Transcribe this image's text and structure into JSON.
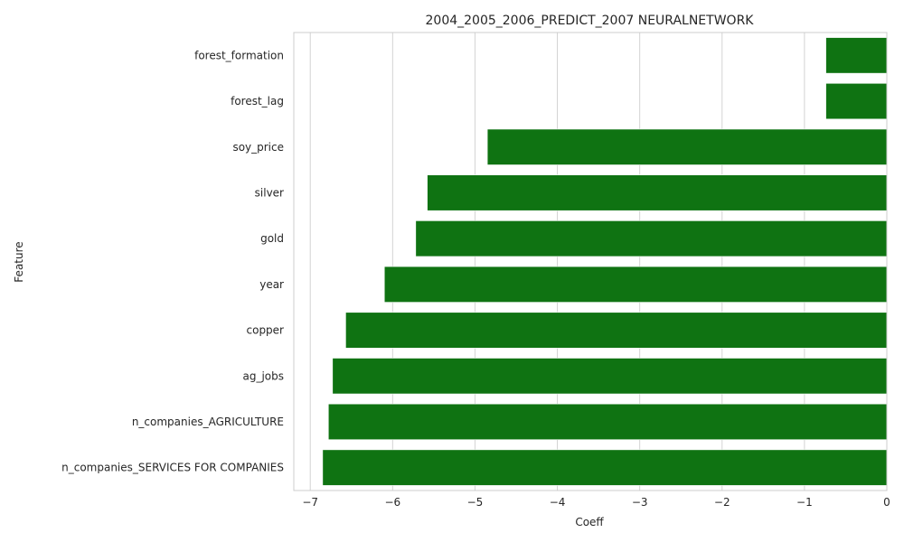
{
  "chart_data": {
    "type": "bar",
    "orientation": "horizontal",
    "title": "2004_2005_2006_PREDICT_2007 NEURALNETWORK",
    "xlabel": "Coeff",
    "ylabel": "Feature",
    "categories": [
      "forest_formation",
      "forest_lag",
      "soy_price",
      "silver",
      "gold",
      "year",
      "copper",
      "ag_jobs",
      "n_companies_AGRICULTURE",
      "n_companies_SERVICES FOR COMPANIES"
    ],
    "values": [
      -0.74,
      -0.74,
      -4.85,
      -5.58,
      -5.72,
      -6.1,
      -6.57,
      -6.73,
      -6.78,
      -6.85
    ],
    "xlim": [
      -7.2,
      0
    ],
    "xticks": [
      -7,
      -6,
      -5,
      -4,
      -3,
      -2,
      -1,
      0
    ],
    "xtick_labels": [
      "−7",
      "−6",
      "−5",
      "−4",
      "−3",
      "−2",
      "−1",
      "0"
    ],
    "grid": true,
    "bar_color": "#0f7312",
    "grid_color": "#d3d3d3",
    "axis_color": "#cccccc",
    "text_color": "#262626"
  }
}
